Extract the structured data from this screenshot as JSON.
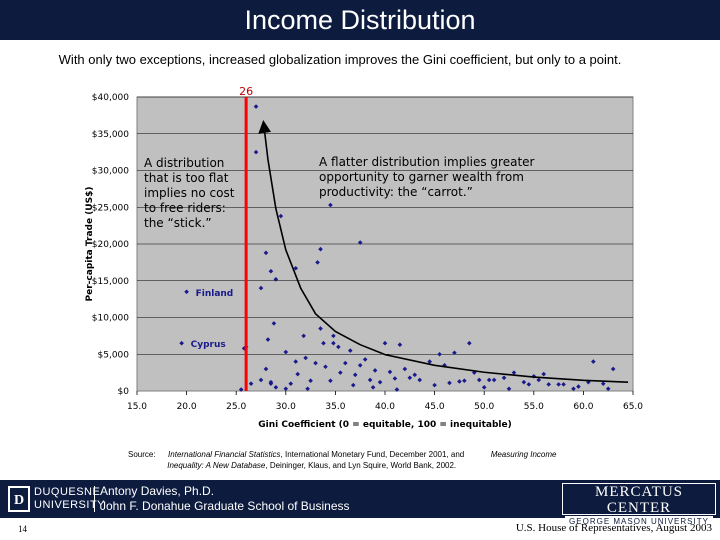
{
  "slide": {
    "title": "Income Distribution",
    "subtitle": "With only two exceptions, increased globalization improves the Gini coefficient, but only to a point.",
    "page_number": "14",
    "venue": "U.S. House of Representatives, August 2003"
  },
  "source": {
    "prefix": "Source:",
    "work1": "International Financial Statistics",
    "text1": ", International Monetary Fund, December 2001, and",
    "work2": "Measuring Income",
    "work3": "Inequality: A New Database",
    "text2": ", Deininger, Klaus, and Lyn Squire, World Bank, 2002."
  },
  "footer": {
    "univ_line1": "DUQUESNE",
    "univ_line2": "UNIVERSITY",
    "person": "Antony Davies, Ph.D.",
    "school": "John F. Donahue Graduate School of Business",
    "center_line1": "MERCATUS CENTER",
    "center_line2": "GEORGE MASON UNIVERSITY"
  },
  "colors": {
    "header_bg": "#0d1b3e",
    "plot_bg": "#c0c0c0",
    "marker": "#1a1a8c",
    "threshold_line": "#ff0000",
    "curve": "#000000"
  },
  "chart_data": {
    "type": "scatter",
    "title": "",
    "xlabel": "Gini Coefficient (0 = equitable, 100 = inequitable)",
    "ylabel": "Per-capita Trade (US$)",
    "xlim": [
      15,
      65
    ],
    "ylim": [
      0,
      40000
    ],
    "x_ticks": [
      "15.0",
      "20.0",
      "25.0",
      "30.0",
      "35.0",
      "40.0",
      "45.0",
      "50.0",
      "55.0",
      "60.0",
      "65.0"
    ],
    "y_ticks": [
      "$0",
      "$5,000",
      "$10,000",
      "$15,000",
      "$20,000",
      "$25,000",
      "$30,000",
      "$35,000",
      "$40,000"
    ],
    "grid": "horizontal",
    "threshold": {
      "x": 26,
      "label": "26"
    },
    "curve": [
      [
        64.5,
        1200
      ],
      [
        60,
        1450
      ],
      [
        55,
        1900
      ],
      [
        50,
        2550
      ],
      [
        45,
        3500
      ],
      [
        40,
        4950
      ],
      [
        37.5,
        6300
      ],
      [
        35,
        8100
      ],
      [
        33,
        10500
      ],
      [
        31.5,
        14000
      ],
      [
        30,
        19200
      ],
      [
        29,
        24800
      ],
      [
        28.2,
        31500
      ],
      [
        27.8,
        36000
      ]
    ],
    "labeled_points": [
      {
        "name": "Finland",
        "x": 20,
        "y": 13500
      },
      {
        "name": "Cyprus",
        "x": 19.5,
        "y": 6500
      }
    ],
    "annotations": [
      {
        "text": [
          "A distribution",
          "that is too flat",
          "implies no cost",
          "to free riders:",
          "the “stick.”"
        ]
      },
      {
        "text": [
          "A flatter distribution implies greater",
          "opportunity to garner wealth from",
          "productivity: the “carrot.”"
        ]
      }
    ],
    "points": [
      [
        27.0,
        38700
      ],
      [
        27.0,
        32500
      ],
      [
        34.5,
        25300
      ],
      [
        29.5,
        23800
      ],
      [
        37.5,
        20200
      ],
      [
        28.5,
        16300
      ],
      [
        28.0,
        18800
      ],
      [
        31.0,
        16700
      ],
      [
        33.2,
        17500
      ],
      [
        33.5,
        19300
      ],
      [
        27.5,
        14000
      ],
      [
        29.0,
        15200
      ],
      [
        28.8,
        9200
      ],
      [
        28.2,
        7000
      ],
      [
        31.8,
        7500
      ],
      [
        34.8,
        7500
      ],
      [
        25.8,
        5800
      ],
      [
        26.0,
        6000
      ],
      [
        33.5,
        8500
      ],
      [
        33.8,
        6500
      ],
      [
        34.8,
        6500
      ],
      [
        35.3,
        6000
      ],
      [
        28.0,
        3000
      ],
      [
        34.0,
        3300
      ],
      [
        30.0,
        5300
      ],
      [
        31.0,
        4000
      ],
      [
        32.0,
        4500
      ],
      [
        33.0,
        3800
      ],
      [
        27.5,
        1500
      ],
      [
        28.5,
        1000
      ],
      [
        29.0,
        500
      ],
      [
        30.0,
        300
      ],
      [
        31.2,
        2300
      ],
      [
        32.5,
        1400
      ],
      [
        34.5,
        1400
      ],
      [
        36.5,
        5500
      ],
      [
        37.5,
        3500
      ],
      [
        38.0,
        4300
      ],
      [
        38.5,
        1500
      ],
      [
        39.0,
        2800
      ],
      [
        39.5,
        1200
      ],
      [
        40.0,
        6500
      ],
      [
        40.5,
        2600
      ],
      [
        41.0,
        1700
      ],
      [
        41.5,
        6300
      ],
      [
        42.0,
        3000
      ],
      [
        42.5,
        1800
      ],
      [
        43.5,
        1500
      ],
      [
        44.5,
        4000
      ],
      [
        45.0,
        800
      ],
      [
        45.5,
        5000
      ],
      [
        46.0,
        3500
      ],
      [
        47.0,
        5200
      ],
      [
        47.5,
        1300
      ],
      [
        48.5,
        6500
      ],
      [
        49.0,
        2500
      ],
      [
        49.5,
        1500
      ],
      [
        50.0,
        500
      ],
      [
        51.0,
        1500
      ],
      [
        52.0,
        1800
      ],
      [
        53.0,
        2500
      ],
      [
        54.0,
        1200
      ],
      [
        54.5,
        900
      ],
      [
        55.0,
        2000
      ],
      [
        56.0,
        2300
      ],
      [
        56.5,
        900
      ],
      [
        59.0,
        300
      ],
      [
        59.5,
        600
      ],
      [
        61.0,
        4000
      ],
      [
        62.0,
        1000
      ],
      [
        62.5,
        300
      ],
      [
        63.0,
        3000
      ],
      [
        35.5,
        2500
      ],
      [
        36.0,
        3800
      ],
      [
        30.5,
        1000
      ],
      [
        26.5,
        1000
      ],
      [
        25.5,
        200
      ],
      [
        37.0,
        2200
      ],
      [
        43.0,
        2200
      ],
      [
        50.5,
        1500
      ],
      [
        55.5,
        1500
      ],
      [
        58.0,
        900
      ],
      [
        28.5,
        1200
      ],
      [
        32.2,
        300
      ],
      [
        36.8,
        800
      ],
      [
        38.8,
        500
      ],
      [
        41.2,
        200
      ],
      [
        46.5,
        1100
      ],
      [
        48.0,
        1400
      ],
      [
        52.5,
        300
      ],
      [
        57.5,
        900
      ],
      [
        60.5,
        1200
      ]
    ]
  }
}
